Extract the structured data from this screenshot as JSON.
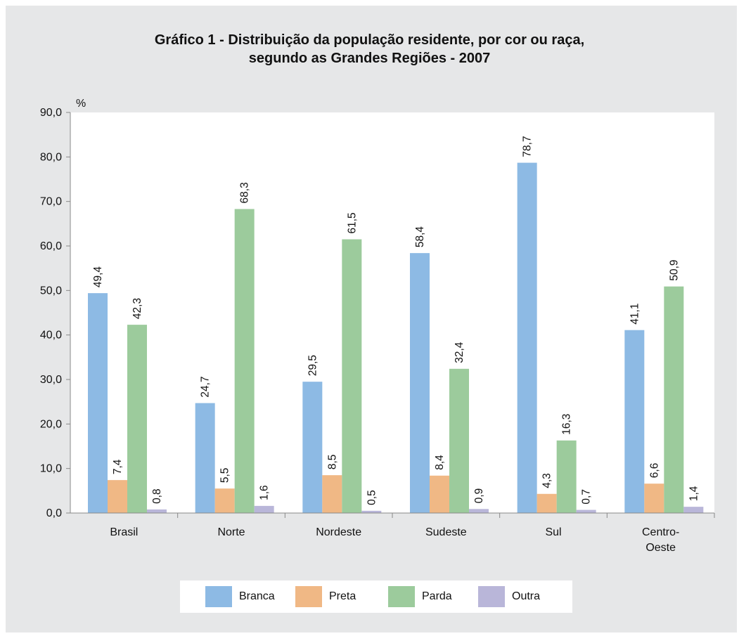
{
  "chart_data": {
    "type": "bar",
    "title_lines": [
      "Gráfico 1 - Distribuição da população residente, por cor ou raça,",
      "segundo as Grandes Regiões  - 2007"
    ],
    "ylabel": "%",
    "ylim": [
      0,
      90
    ],
    "yticks": [
      "0,0",
      "10,0",
      "20,0",
      "30,0",
      "40,0",
      "50,0",
      "60,0",
      "70,0",
      "80,0",
      "90,0"
    ],
    "categories": [
      [
        "Brasil"
      ],
      [
        "Norte"
      ],
      [
        "Nordeste"
      ],
      [
        "Sudeste"
      ],
      [
        "Sul"
      ],
      [
        "Centro-",
        "Oeste"
      ]
    ],
    "series": [
      {
        "name": "Branca",
        "color": "#8dbae4",
        "values": [
          49.4,
          24.7,
          29.5,
          58.4,
          78.7,
          41.1
        ],
        "labels": [
          "49,4",
          "24,7",
          "29,5",
          "58,4",
          "78,7",
          "41,1"
        ]
      },
      {
        "name": "Preta",
        "color": "#f0b885",
        "values": [
          7.4,
          5.5,
          8.5,
          8.4,
          4.3,
          6.6
        ],
        "labels": [
          "7,4",
          "5,5",
          "8,5",
          "8,4",
          "4,3",
          "6,6"
        ]
      },
      {
        "name": "Parda",
        "color": "#9ccb9c",
        "values": [
          42.3,
          68.3,
          61.5,
          32.4,
          16.3,
          50.9
        ],
        "labels": [
          "42,3",
          "68,3",
          "61,5",
          "32,4",
          "16,3",
          "50,9"
        ]
      },
      {
        "name": "Outra",
        "color": "#b9b6d9",
        "values": [
          0.8,
          1.6,
          0.5,
          0.9,
          0.7,
          1.4
        ],
        "labels": [
          "0,8",
          "1,6",
          "0,5",
          "0,9",
          "0,7",
          "1,4"
        ]
      }
    ],
    "grid": false,
    "legend_position": "bottom"
  }
}
